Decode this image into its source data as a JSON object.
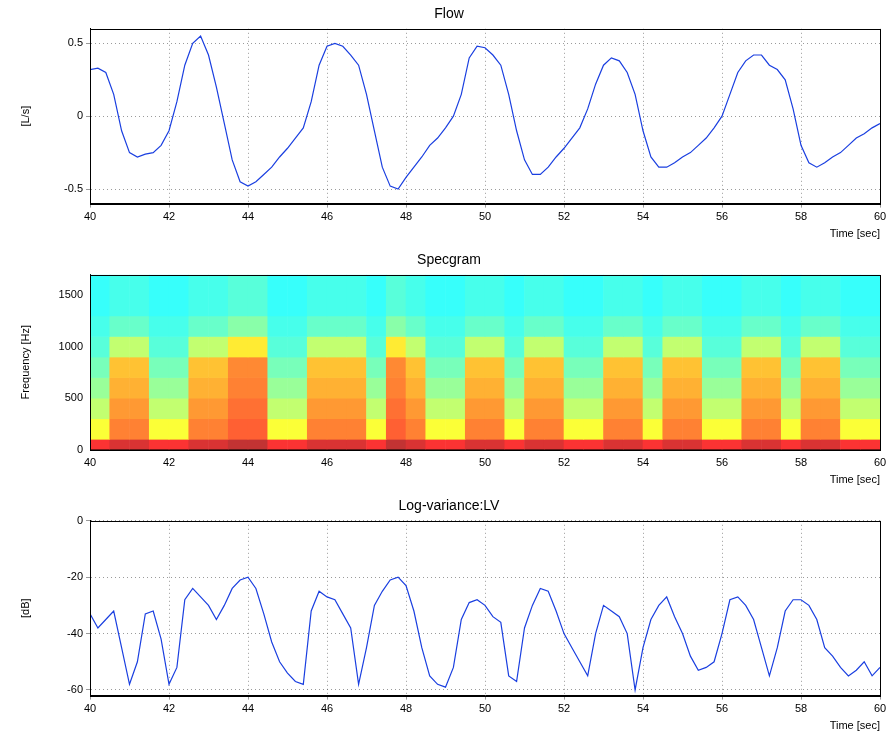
{
  "chart_data": [
    {
      "type": "line",
      "title": "Flow",
      "y_label": "[L/s]",
      "x_label": "Time [sec]",
      "color": "#1a3fe0",
      "grid": true,
      "xlim": [
        40,
        60
      ],
      "xticks": [
        40,
        42,
        44,
        46,
        48,
        50,
        52,
        54,
        56,
        58,
        60
      ],
      "ylim": [
        -0.6,
        0.6
      ],
      "yticks": [
        -0.5,
        0,
        0.5
      ],
      "x": [
        40,
        40.2,
        40.4,
        40.6,
        40.8,
        41,
        41.2,
        41.4,
        41.6,
        41.8,
        42,
        42.2,
        42.4,
        42.6,
        42.8,
        43,
        43.2,
        43.4,
        43.6,
        43.8,
        44,
        44.2,
        44.4,
        44.6,
        44.8,
        45,
        45.2,
        45.4,
        45.6,
        45.8,
        46,
        46.2,
        46.4,
        46.6,
        46.8,
        47,
        47.2,
        47.4,
        47.6,
        47.8,
        48,
        48.2,
        48.4,
        48.6,
        48.8,
        49,
        49.2,
        49.4,
        49.6,
        49.8,
        50,
        50.2,
        50.4,
        50.6,
        50.8,
        51,
        51.2,
        51.4,
        51.6,
        51.8,
        52,
        52.2,
        52.4,
        52.6,
        52.8,
        53,
        53.2,
        53.4,
        53.6,
        53.8,
        54,
        54.2,
        54.4,
        54.6,
        54.8,
        55,
        55.2,
        55.4,
        55.6,
        55.8,
        56,
        56.2,
        56.4,
        56.6,
        56.8,
        57,
        57.2,
        57.4,
        57.6,
        57.8,
        58,
        58.2,
        58.4,
        58.6,
        58.8,
        59,
        59.2,
        59.4,
        59.6,
        59.8,
        60
      ],
      "values": [
        0.32,
        0.33,
        0.3,
        0.15,
        -0.1,
        -0.25,
        -0.28,
        -0.26,
        -0.25,
        -0.2,
        -0.1,
        0.1,
        0.35,
        0.5,
        0.55,
        0.42,
        0.2,
        -0.05,
        -0.3,
        -0.45,
        -0.48,
        -0.45,
        -0.4,
        -0.35,
        -0.28,
        -0.22,
        -0.15,
        -0.08,
        0.1,
        0.35,
        0.48,
        0.5,
        0.48,
        0.42,
        0.35,
        0.15,
        -0.1,
        -0.35,
        -0.48,
        -0.5,
        -0.42,
        -0.35,
        -0.28,
        -0.2,
        -0.15,
        -0.08,
        0.0,
        0.15,
        0.4,
        0.48,
        0.47,
        0.42,
        0.35,
        0.15,
        -0.1,
        -0.3,
        -0.4,
        -0.4,
        -0.35,
        -0.28,
        -0.22,
        -0.15,
        -0.08,
        0.05,
        0.22,
        0.35,
        0.4,
        0.38,
        0.3,
        0.15,
        -0.1,
        -0.28,
        -0.35,
        -0.35,
        -0.32,
        -0.28,
        -0.25,
        -0.2,
        -0.15,
        -0.08,
        0.0,
        0.15,
        0.3,
        0.38,
        0.42,
        0.42,
        0.35,
        0.32,
        0.25,
        0.05,
        -0.2,
        -0.32,
        -0.35,
        -0.32,
        -0.28,
        -0.25,
        -0.2,
        -0.15,
        -0.12,
        -0.08,
        -0.05
      ]
    },
    {
      "type": "heatmap",
      "title": "Specgram",
      "y_label": "Frequency [Hz]",
      "x_label": "Time [sec]",
      "grid": false,
      "xlim": [
        40,
        60
      ],
      "xticks": [
        40,
        42,
        44,
        46,
        48,
        50,
        52,
        54,
        56,
        58,
        60
      ],
      "ylim": [
        0,
        1700
      ],
      "yticks": [
        0,
        500,
        1000,
        1500
      ],
      "x_edges": [
        40,
        40.5,
        41,
        41.5,
        42,
        42.5,
        43,
        43.5,
        44,
        44.5,
        45,
        45.5,
        46,
        46.5,
        47,
        47.5,
        48,
        48.5,
        49,
        49.5,
        50,
        50.5,
        51,
        51.5,
        52,
        52.5,
        53,
        53.5,
        54,
        54.5,
        55,
        55.5,
        56,
        56.5,
        57,
        57.5,
        58,
        58.5,
        59,
        59.5,
        60
      ],
      "y_edges": [
        0,
        100,
        300,
        500,
        700,
        900,
        1100,
        1300,
        1700
      ],
      "cell_range": [
        0,
        1
      ],
      "cells": [
        [
          0.88,
          0.92,
          0.92,
          0.88,
          0.88,
          0.92,
          0.92,
          0.95,
          0.95,
          0.88,
          0.88,
          0.92,
          0.92,
          0.92,
          0.88,
          0.95,
          0.92,
          0.88,
          0.88,
          0.92,
          0.92,
          0.88,
          0.92,
          0.92,
          0.88,
          0.88,
          0.92,
          0.92,
          0.88,
          0.92,
          0.92,
          0.88,
          0.88,
          0.92,
          0.92,
          0.88,
          0.92,
          0.92,
          0.88,
          0.88
        ],
        [
          0.62,
          0.78,
          0.78,
          0.62,
          0.62,
          0.78,
          0.78,
          0.82,
          0.82,
          0.62,
          0.62,
          0.78,
          0.78,
          0.78,
          0.62,
          0.82,
          0.78,
          0.62,
          0.62,
          0.78,
          0.78,
          0.62,
          0.78,
          0.78,
          0.62,
          0.62,
          0.78,
          0.78,
          0.62,
          0.78,
          0.78,
          0.62,
          0.62,
          0.78,
          0.78,
          0.62,
          0.78,
          0.78,
          0.62,
          0.62
        ],
        [
          0.55,
          0.75,
          0.75,
          0.55,
          0.55,
          0.75,
          0.75,
          0.8,
          0.8,
          0.55,
          0.55,
          0.75,
          0.75,
          0.75,
          0.55,
          0.8,
          0.75,
          0.55,
          0.55,
          0.75,
          0.75,
          0.55,
          0.75,
          0.75,
          0.55,
          0.55,
          0.75,
          0.75,
          0.55,
          0.75,
          0.75,
          0.55,
          0.55,
          0.75,
          0.75,
          0.55,
          0.75,
          0.75,
          0.55,
          0.55
        ],
        [
          0.5,
          0.72,
          0.72,
          0.5,
          0.5,
          0.72,
          0.72,
          0.78,
          0.78,
          0.5,
          0.5,
          0.72,
          0.72,
          0.72,
          0.5,
          0.78,
          0.72,
          0.5,
          0.5,
          0.72,
          0.72,
          0.5,
          0.72,
          0.72,
          0.5,
          0.5,
          0.72,
          0.72,
          0.5,
          0.72,
          0.72,
          0.5,
          0.5,
          0.72,
          0.72,
          0.5,
          0.72,
          0.72,
          0.5,
          0.5
        ],
        [
          0.46,
          0.7,
          0.7,
          0.46,
          0.46,
          0.7,
          0.7,
          0.77,
          0.77,
          0.46,
          0.46,
          0.7,
          0.7,
          0.7,
          0.46,
          0.77,
          0.7,
          0.46,
          0.46,
          0.7,
          0.7,
          0.46,
          0.7,
          0.7,
          0.46,
          0.46,
          0.7,
          0.7,
          0.46,
          0.7,
          0.7,
          0.46,
          0.46,
          0.7,
          0.7,
          0.46,
          0.7,
          0.7,
          0.46,
          0.46
        ],
        [
          0.42,
          0.55,
          0.55,
          0.42,
          0.42,
          0.55,
          0.55,
          0.65,
          0.65,
          0.42,
          0.42,
          0.55,
          0.55,
          0.55,
          0.42,
          0.65,
          0.55,
          0.42,
          0.42,
          0.55,
          0.55,
          0.42,
          0.55,
          0.55,
          0.42,
          0.42,
          0.55,
          0.55,
          0.42,
          0.55,
          0.55,
          0.42,
          0.42,
          0.55,
          0.55,
          0.42,
          0.55,
          0.55,
          0.42,
          0.42
        ],
        [
          0.4,
          0.44,
          0.44,
          0.4,
          0.4,
          0.44,
          0.44,
          0.48,
          0.48,
          0.4,
          0.4,
          0.44,
          0.44,
          0.44,
          0.4,
          0.48,
          0.44,
          0.4,
          0.4,
          0.44,
          0.44,
          0.4,
          0.44,
          0.44,
          0.4,
          0.4,
          0.44,
          0.44,
          0.4,
          0.44,
          0.44,
          0.4,
          0.4,
          0.44,
          0.44,
          0.4,
          0.44,
          0.44,
          0.4,
          0.4
        ],
        [
          0.38,
          0.4,
          0.4,
          0.38,
          0.38,
          0.4,
          0.4,
          0.42,
          0.42,
          0.38,
          0.38,
          0.4,
          0.4,
          0.4,
          0.38,
          0.42,
          0.4,
          0.38,
          0.38,
          0.4,
          0.4,
          0.38,
          0.4,
          0.4,
          0.38,
          0.38,
          0.4,
          0.4,
          0.38,
          0.4,
          0.4,
          0.38,
          0.38,
          0.4,
          0.4,
          0.38,
          0.4,
          0.4,
          0.38,
          0.38
        ]
      ]
    },
    {
      "type": "line",
      "title": "Log-variance:LV",
      "y_label": "[dB]",
      "x_label": "Time [sec]",
      "color": "#1a3fe0",
      "grid": true,
      "xlim": [
        40,
        60
      ],
      "xticks": [
        40,
        42,
        44,
        46,
        48,
        50,
        52,
        54,
        56,
        58,
        60
      ],
      "ylim": [
        -62,
        0
      ],
      "yticks": [
        -60,
        -40,
        -20,
        0
      ],
      "x": [
        40,
        40.2,
        40.4,
        40.6,
        40.8,
        41,
        41.2,
        41.4,
        41.6,
        41.8,
        42,
        42.2,
        42.4,
        42.6,
        42.8,
        43,
        43.2,
        43.4,
        43.6,
        43.8,
        44,
        44.2,
        44.4,
        44.6,
        44.8,
        45,
        45.2,
        45.4,
        45.6,
        45.8,
        46,
        46.2,
        46.4,
        46.6,
        46.8,
        47,
        47.2,
        47.4,
        47.6,
        47.8,
        48,
        48.2,
        48.4,
        48.6,
        48.8,
        49,
        49.2,
        49.4,
        49.6,
        49.8,
        50,
        50.2,
        50.4,
        50.6,
        50.8,
        51,
        51.2,
        51.4,
        51.6,
        51.8,
        52,
        52.2,
        52.4,
        52.6,
        52.8,
        53,
        53.2,
        53.4,
        53.6,
        53.8,
        54,
        54.2,
        54.4,
        54.6,
        54.8,
        55,
        55.2,
        55.4,
        55.6,
        55.8,
        56,
        56.2,
        56.4,
        56.6,
        56.8,
        57,
        57.2,
        57.4,
        57.6,
        57.8,
        58,
        58.2,
        58.4,
        58.6,
        58.8,
        59,
        59.2,
        59.4,
        59.6,
        59.8,
        60
      ],
      "values": [
        -33,
        -38,
        -35,
        -32,
        -45,
        -58,
        -50,
        -33,
        -32,
        -42,
        -58,
        -52,
        -28,
        -24,
        -27,
        -30,
        -35,
        -30,
        -24,
        -21,
        -20,
        -24,
        -33,
        -43,
        -50,
        -54,
        -57,
        -58,
        -32,
        -25,
        -27,
        -28,
        -33,
        -38,
        -58,
        -45,
        -30,
        -25,
        -21,
        -20,
        -23,
        -32,
        -45,
        -55,
        -58,
        -59,
        -52,
        -35,
        -29,
        -28,
        -30,
        -34,
        -36,
        -55,
        -57,
        -38,
        -30,
        -24,
        -25,
        -32,
        -40,
        -45,
        -50,
        -55,
        -40,
        -30,
        -32,
        -34,
        -40,
        -60,
        -45,
        -35,
        -30,
        -27,
        -34,
        -40,
        -48,
        -53,
        -52,
        -50,
        -40,
        -28,
        -27,
        -30,
        -35,
        -45,
        -55,
        -45,
        -32,
        -28,
        -28,
        -30,
        -35,
        -45,
        -48,
        -52,
        -55,
        -53,
        -50,
        -55,
        -52
      ]
    }
  ]
}
